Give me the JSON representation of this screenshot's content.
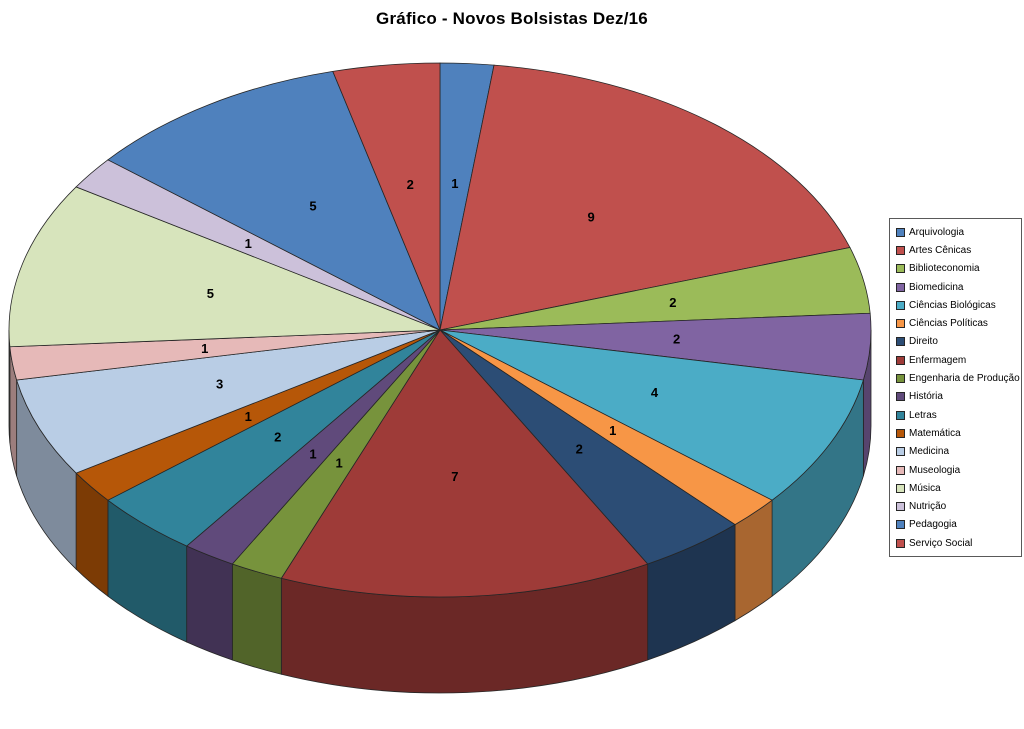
{
  "page": {
    "background": "#FFFFFF"
  },
  "chart_data": {
    "type": "pie",
    "projection": "3d",
    "title": "Gráfico - Novos Bolsistas Dez/16",
    "data_labels": "value",
    "legend_position": "right",
    "start_angle_deg": -90,
    "direction": "clockwise",
    "total": 50,
    "categories": [
      "Arquivologia",
      "Artes Cênicas",
      "Biblioteconomia",
      "Biomedicina",
      "Ciências Biológicas",
      "Ciências Políticas",
      "Direito",
      "Enfermagem",
      "Engenharia de Produção",
      "História",
      "Letras",
      "Matemática",
      "Medicina",
      "Museologia",
      "Música",
      "Nutrição",
      "Pedagogia",
      "Serviço Social"
    ],
    "values": [
      1,
      9,
      2,
      2,
      4,
      1,
      2,
      7,
      1,
      1,
      2,
      1,
      3,
      1,
      5,
      1,
      5,
      2
    ],
    "colors": [
      "#4F81BD",
      "#C0504D",
      "#9BBB59",
      "#8064A2",
      "#4BACC6",
      "#F79646",
      "#2C4D75",
      "#9E3B38",
      "#77933C",
      "#604A7B",
      "#31849B",
      "#B65708",
      "#B9CDE5",
      "#E6B9B8",
      "#D7E4BC",
      "#CCC1DA",
      "#4F81BD",
      "#C0504D"
    ]
  }
}
